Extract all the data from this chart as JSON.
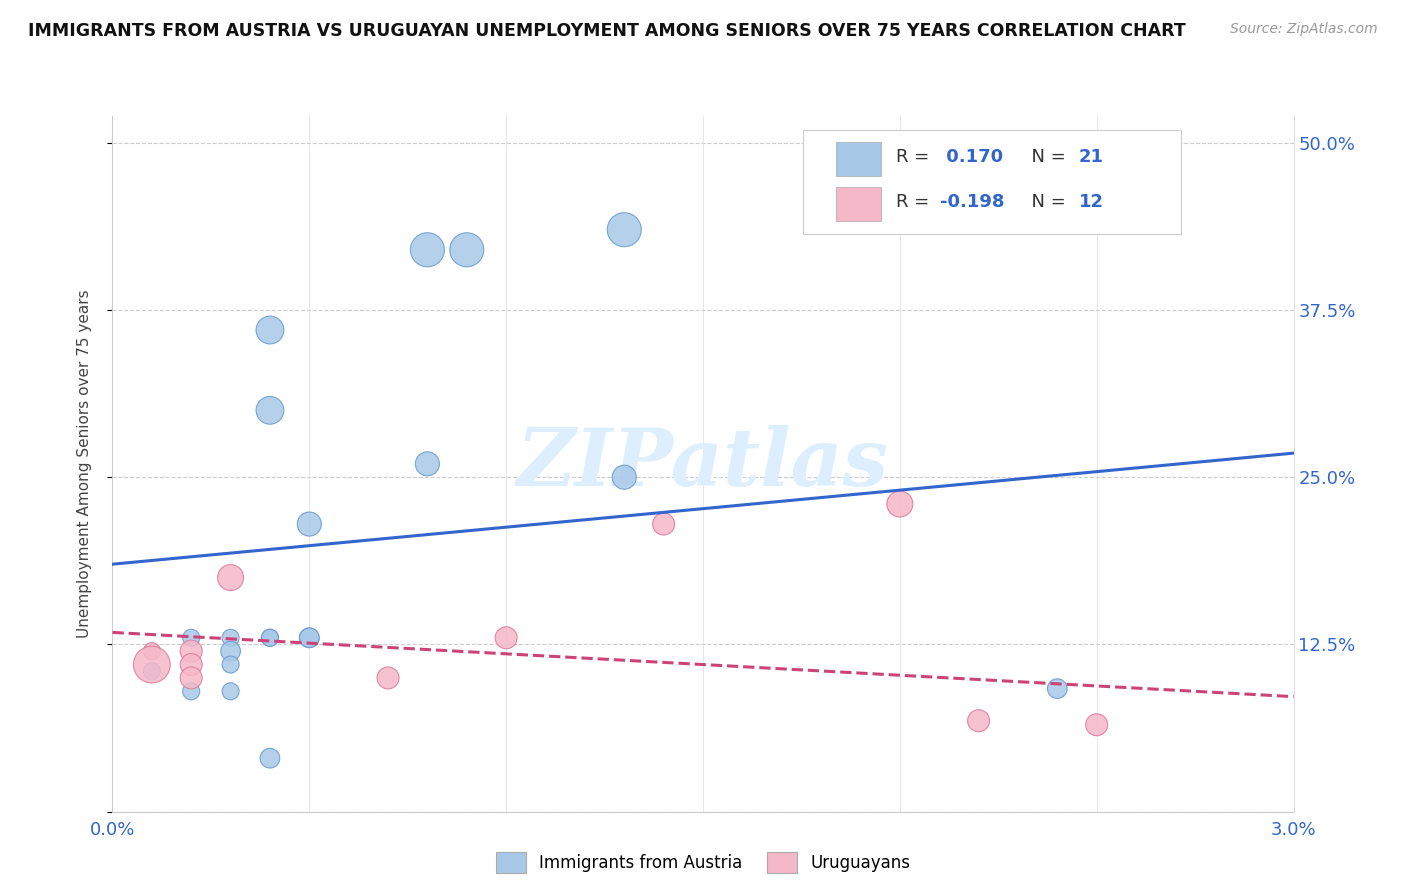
{
  "title": "IMMIGRANTS FROM AUSTRIA VS URUGUAYAN UNEMPLOYMENT AMONG SENIORS OVER 75 YEARS CORRELATION CHART",
  "source": "Source: ZipAtlas.com",
  "ylabel": "Unemployment Among Seniors over 75 years",
  "y_ticks": [
    0.0,
    0.125,
    0.25,
    0.375,
    0.5
  ],
  "y_tick_labels": [
    "",
    "12.5%",
    "25.0%",
    "37.5%",
    "50.0%"
  ],
  "x_range": [
    0.0,
    0.03
  ],
  "y_range": [
    0.0,
    0.52
  ],
  "blue_R": "0.170",
  "blue_N": "21",
  "pink_R": "-0.198",
  "pink_N": "12",
  "blue_color": "#a8c8e8",
  "pink_color": "#f5b8c8",
  "blue_edge_color": "#6699cc",
  "pink_edge_color": "#dd7799",
  "blue_line_color": "#3366cc",
  "pink_line_color": "#cc4477",
  "watermark_color": "#ddeeff",
  "blue_points_x": [
    0.001,
    0.002,
    0.002,
    0.003,
    0.003,
    0.003,
    0.003,
    0.004,
    0.004,
    0.004,
    0.004,
    0.004,
    0.005,
    0.005,
    0.005,
    0.008,
    0.008,
    0.009,
    0.013,
    0.013,
    0.024
  ],
  "blue_points_y": [
    0.105,
    0.13,
    0.09,
    0.13,
    0.09,
    0.12,
    0.11,
    0.3,
    0.36,
    0.13,
    0.13,
    0.04,
    0.215,
    0.13,
    0.13,
    0.26,
    0.42,
    0.42,
    0.25,
    0.435,
    0.092
  ],
  "blue_sizes": [
    150,
    150,
    150,
    150,
    150,
    200,
    150,
    400,
    400,
    150,
    150,
    200,
    300,
    200,
    200,
    300,
    600,
    600,
    300,
    600,
    200
  ],
  "pink_points_x": [
    0.001,
    0.001,
    0.002,
    0.002,
    0.002,
    0.003,
    0.007,
    0.01,
    0.014,
    0.02,
    0.022,
    0.025
  ],
  "pink_points_y": [
    0.12,
    0.11,
    0.12,
    0.11,
    0.1,
    0.175,
    0.1,
    0.13,
    0.215,
    0.23,
    0.068,
    0.065
  ],
  "pink_sizes": [
    150,
    700,
    250,
    250,
    250,
    350,
    250,
    250,
    250,
    350,
    250,
    250
  ],
  "blue_line_x": [
    0.0,
    0.03
  ],
  "blue_line_y": [
    0.185,
    0.268
  ],
  "pink_line_x": [
    0.0,
    0.03
  ],
  "pink_line_y": [
    0.134,
    0.086
  ],
  "legend_label_blue": "Immigrants from Austria",
  "legend_label_pink": "Uruguayans"
}
